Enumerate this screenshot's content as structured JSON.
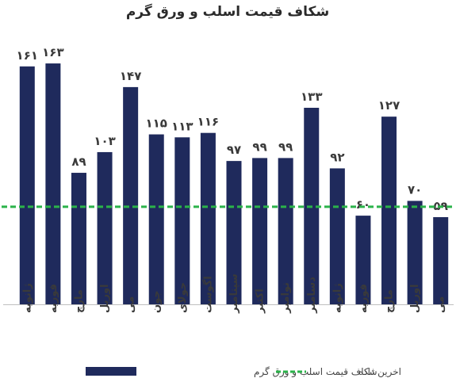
{
  "chart_data": {
    "type": "bar",
    "title": "شکاف قیمت اسلب و ورق گرم",
    "categories": [
      "ژانویه",
      "فوریه",
      "مارچ",
      "اوریل",
      "می",
      "جون",
      "جولای",
      "اگوست",
      "سپتامبر",
      "اکتبر",
      "نوامبر",
      "دسامبر",
      "ژانویه",
      "فوریه",
      "مارچ",
      "اوریل",
      "می"
    ],
    "values": [
      161,
      163,
      89,
      103,
      147,
      115,
      113,
      116,
      97,
      99,
      99,
      133,
      92,
      60,
      127,
      70,
      59
    ],
    "value_labels": [
      "۱۶۱",
      "۱۶۳",
      "۸۹",
      "۱۰۳",
      "۱۴۷",
      "۱۱۵",
      "۱۱۳",
      "۱۱۶",
      "۹۷",
      "۹۹",
      "۹۹",
      "۱۳۳",
      "۹۲",
      "۶۰",
      "۱۲۷",
      "۷۰",
      "۵۹"
    ],
    "ylim": [
      0,
      170
    ],
    "reference_line": {
      "value": 66,
      "style": "dashed"
    },
    "legend": {
      "placement": "bottom",
      "bar_label": "شکاف قیمت اسلب و ورق گرم",
      "line_label": "اخرین داده"
    },
    "colors": {
      "bar": "#1f2a5c",
      "line": "#2bb34a",
      "axis": "#bfbfbf"
    },
    "grid": false
  }
}
